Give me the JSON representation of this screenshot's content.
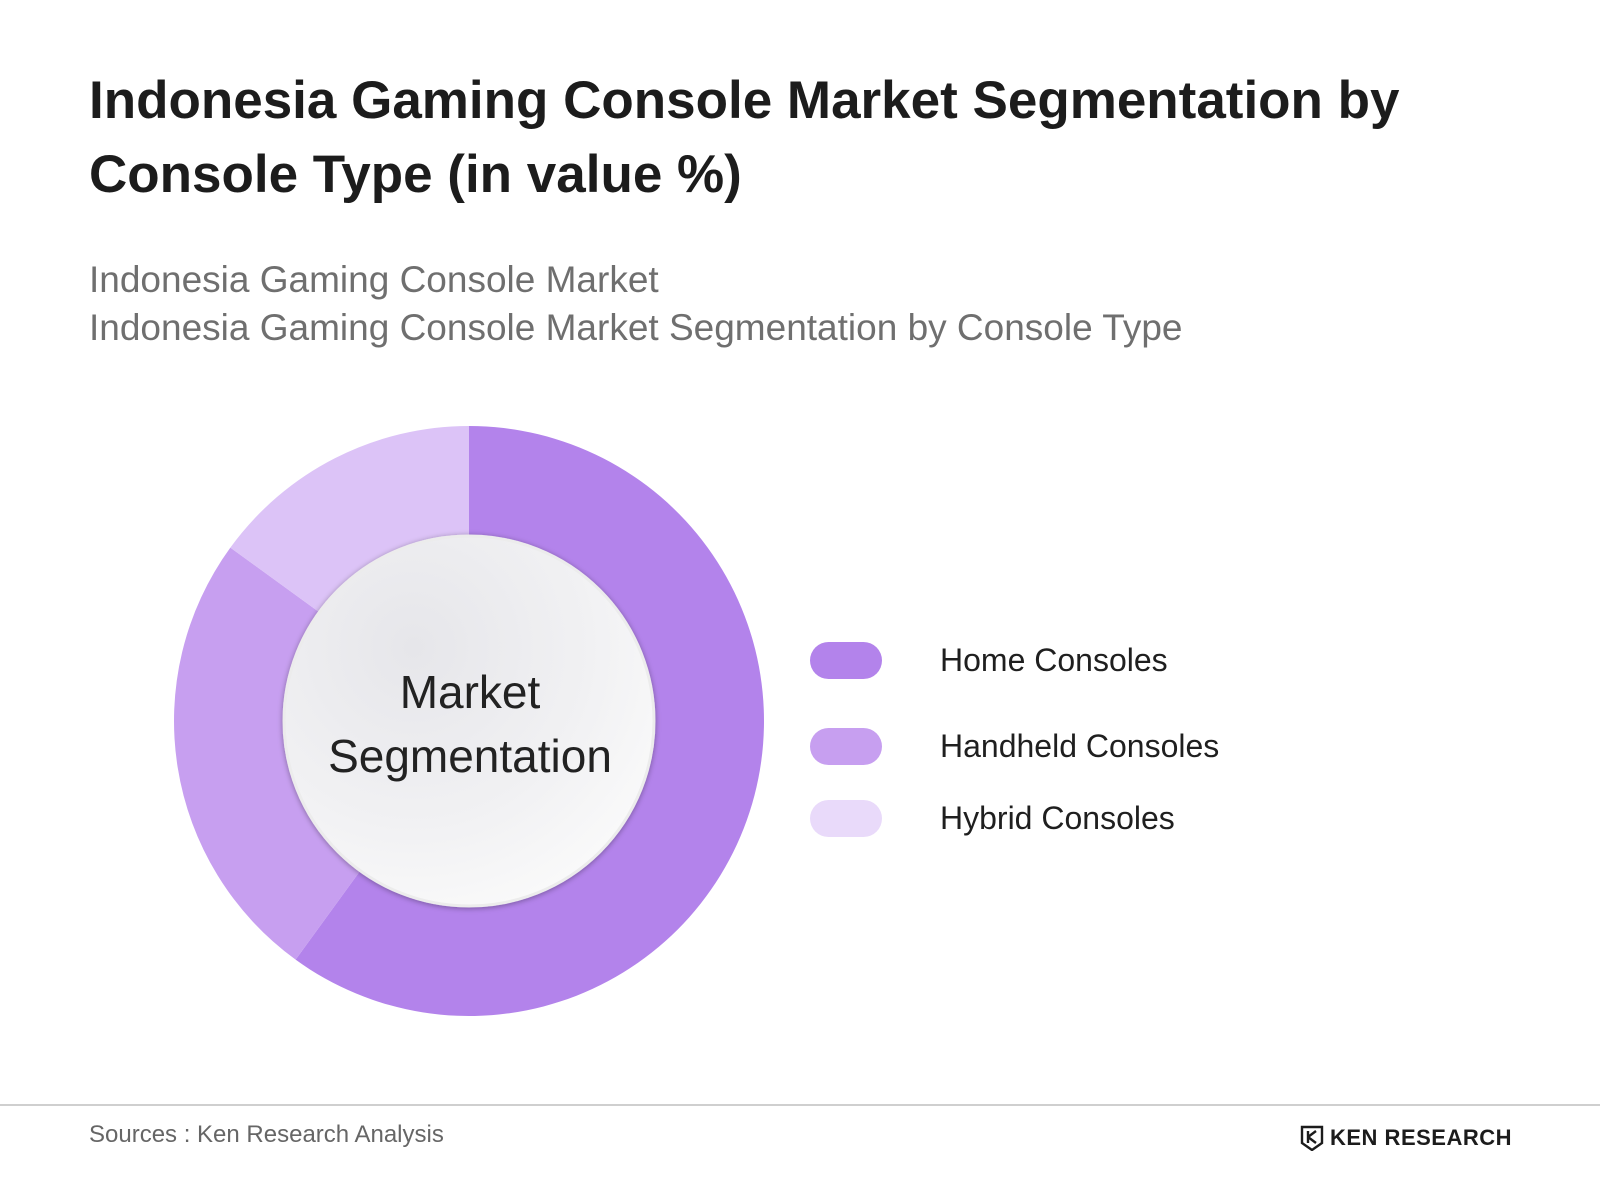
{
  "header": {
    "title": "Indonesia Gaming Console Market Segmentation by Console Type (in value %)",
    "subtitle_line1": "Indonesia Gaming Console Market",
    "subtitle_line2": "Indonesia Gaming Console Market Segmentation by Console Type"
  },
  "chart_data": {
    "type": "pie",
    "variant": "donut",
    "center_label_line1": "Market",
    "center_label_line2": "Segmentation",
    "categories": [
      "Home Consoles",
      "Handheld Consoles",
      "Hybrid Consoles"
    ],
    "values": [
      60,
      25,
      15
    ],
    "unit": "%",
    "colors": [
      "#b383eb",
      "#c79ff0",
      "#dcc3f7"
    ],
    "legend_position": "right"
  },
  "legend": {
    "items": [
      {
        "label": "Home Consoles",
        "color": "#b383eb"
      },
      {
        "label": "Handheld Consoles",
        "color": "#c79ff0"
      },
      {
        "label": "Hybrid Consoles",
        "color": "#e9dafa"
      }
    ]
  },
  "footer": {
    "source": "Sources : Ken Research Analysis",
    "brand": "KEN RESEARCH",
    "brand_logo_icon": "ken-research-logo-icon"
  }
}
